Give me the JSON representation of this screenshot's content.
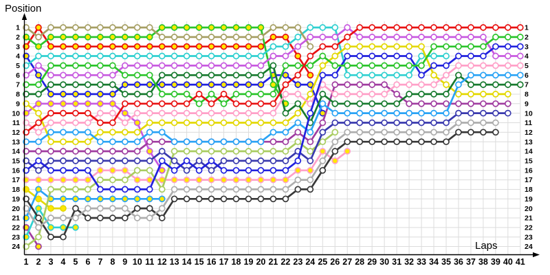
{
  "page": {
    "background": "#FFFFFF"
  },
  "chart_data": {
    "type": "line",
    "title": "",
    "ylabel": "Position",
    "xlabel": "Laps",
    "x_ticks": [
      1,
      2,
      3,
      4,
      5,
      6,
      7,
      8,
      9,
      10,
      11,
      12,
      13,
      14,
      15,
      16,
      17,
      18,
      19,
      20,
      21,
      22,
      23,
      24,
      25,
      26,
      27,
      28,
      29,
      30,
      31,
      32,
      33,
      34,
      35,
      36,
      37,
      38,
      39,
      40,
      41
    ],
    "y_ticks": [
      1,
      2,
      3,
      4,
      5,
      6,
      7,
      8,
      9,
      10,
      11,
      12,
      13,
      14,
      15,
      16,
      17,
      18,
      19,
      20,
      21,
      22,
      23,
      24
    ],
    "x_range": [
      1,
      41
    ],
    "y_range": [
      1,
      24
    ],
    "grid": true,
    "grid_color": "#DCDCDC",
    "axis_color": "#000000",
    "tick_label_color": "#000000",
    "marker_fill_white": "#FFFFFF",
    "marker_fill_yellow": "#FFE800",
    "legend": "none",
    "series": [
      {
        "name": "red-1",
        "color": "#E81212",
        "marker": "white",
        "positions": [
          12,
          11,
          10,
          10,
          10,
          10,
          11,
          11,
          9,
          9,
          9,
          9,
          9,
          9,
          8,
          9,
          8,
          9,
          9,
          9,
          9,
          7,
          6,
          4,
          3,
          3,
          2,
          1,
          1,
          1,
          1,
          1,
          1,
          1,
          1,
          1,
          1,
          1,
          1,
          1,
          1
        ]
      },
      {
        "name": "green-1",
        "color": "#2BC42B",
        "marker": "white",
        "positions": [
          7,
          7,
          5,
          5,
          5,
          5,
          5,
          5,
          6,
          6,
          6,
          8,
          8,
          8,
          9,
          8,
          9,
          8,
          8,
          8,
          8,
          5,
          5,
          5,
          4,
          5,
          5,
          5,
          5,
          5,
          5,
          5,
          5,
          3,
          3,
          3,
          3,
          3,
          2,
          2,
          2
        ]
      },
      {
        "name": "blue-1",
        "color": "#2121DE",
        "marker": "white",
        "positions": [
          16,
          15,
          16,
          16,
          16,
          16,
          18,
          18,
          18,
          18,
          18,
          15,
          16,
          15,
          16,
          15,
          16,
          16,
          16,
          16,
          16,
          16,
          15,
          10,
          6,
          6,
          4,
          4,
          4,
          4,
          4,
          4,
          6,
          5,
          5,
          4,
          4,
          4,
          3,
          3,
          3
        ]
      },
      {
        "name": "violet-1",
        "color": "#C85AE0",
        "marker": "white",
        "positions": [
          6,
          5,
          6,
          6,
          6,
          6,
          6,
          6,
          5,
          5,
          5,
          5,
          5,
          5,
          5,
          5,
          5,
          5,
          5,
          5,
          4,
          4,
          3,
          2,
          2,
          2,
          1,
          2,
          2,
          2,
          2,
          2,
          2,
          2,
          2,
          2,
          2,
          2,
          4,
          4,
          4
        ]
      },
      {
        "name": "pink-1",
        "color": "#FFA0C8",
        "marker": "white",
        "positions": [
          11,
          12,
          11,
          11,
          11,
          11,
          10,
          10,
          11,
          10,
          10,
          10,
          10,
          10,
          10,
          10,
          10,
          10,
          10,
          10,
          10,
          8,
          8,
          9,
          7,
          8,
          8,
          8,
          8,
          8,
          7,
          7,
          7,
          7,
          6,
          5,
          5,
          5,
          5,
          5,
          5
        ]
      },
      {
        "name": "skyblue-1",
        "color": "#29A3F5",
        "marker": "white",
        "positions": [
          13,
          13,
          12,
          12,
          12,
          12,
          13,
          13,
          13,
          13,
          12,
          12,
          13,
          13,
          13,
          13,
          13,
          13,
          13,
          13,
          12,
          12,
          11,
          12,
          9,
          10,
          10,
          10,
          10,
          10,
          10,
          10,
          10,
          10,
          10,
          7,
          6,
          6,
          6,
          6,
          6
        ]
      },
      {
        "name": "darkgreen-1",
        "color": "#177A2E",
        "marker": "white",
        "positions": [
          8,
          8,
          7,
          7,
          7,
          7,
          7,
          7,
          8,
          8,
          8,
          6,
          6,
          6,
          6,
          6,
          6,
          6,
          6,
          6,
          5,
          10,
          9,
          11,
          8,
          9,
          9,
          9,
          9,
          9,
          9,
          8,
          8,
          8,
          8,
          6,
          7,
          7,
          7,
          7,
          7
        ]
      },
      {
        "name": "yellow-1",
        "color": "#E3D800",
        "marker": "white",
        "positions": [
          9,
          10,
          13,
          13,
          13,
          13,
          12,
          12,
          12,
          12,
          11,
          11,
          11,
          11,
          11,
          11,
          11,
          11,
          11,
          11,
          11,
          11,
          10,
          8,
          5,
          4,
          3,
          3,
          3,
          3,
          3,
          3,
          3,
          6,
          7,
          8,
          8,
          8,
          8,
          8,
          null
        ]
      },
      {
        "name": "purple-1",
        "color": "#A03CA0",
        "marker": "white",
        "positions": [
          14,
          14,
          14,
          14,
          14,
          14,
          14,
          14,
          14,
          14,
          13,
          13,
          13,
          13,
          13,
          13,
          13,
          13,
          13,
          13,
          13,
          13,
          12,
          13,
          11,
          7,
          7,
          7,
          7,
          7,
          8,
          9,
          9,
          9,
          9,
          9,
          9,
          9,
          9,
          9,
          null
        ]
      },
      {
        "name": "navy-1",
        "color": "#3A3AAE",
        "marker": "white",
        "positions": [
          15,
          16,
          15,
          15,
          15,
          15,
          15,
          15,
          15,
          15,
          15,
          14,
          15,
          16,
          15,
          16,
          15,
          15,
          15,
          15,
          15,
          15,
          14,
          15,
          12,
          11,
          11,
          11,
          11,
          11,
          11,
          11,
          11,
          11,
          11,
          10,
          10,
          10,
          10,
          10,
          null
        ]
      },
      {
        "name": "gray-1",
        "color": "#ADADAD",
        "marker": "white",
        "positions": [
          20,
          22,
          21,
          21,
          21,
          20,
          20,
          20,
          20,
          21,
          21,
          20,
          18,
          18,
          18,
          18,
          18,
          18,
          18,
          18,
          18,
          18,
          17,
          17,
          15,
          13,
          12,
          12,
          12,
          12,
          12,
          12,
          12,
          12,
          12,
          11,
          11,
          11,
          11,
          null,
          null
        ]
      },
      {
        "name": "black-1",
        "color": "#383838",
        "marker": "white",
        "positions": [
          19,
          21,
          23,
          23,
          20,
          21,
          21,
          21,
          21,
          20,
          20,
          21,
          19,
          19,
          19,
          19,
          19,
          19,
          19,
          19,
          19,
          19,
          18,
          18,
          16,
          14,
          13,
          13,
          13,
          13,
          13,
          13,
          13,
          13,
          13,
          12,
          12,
          12,
          12,
          null,
          null
        ]
      },
      {
        "name": "olive-1",
        "color": "#A69F63",
        "marker": "white",
        "positions": [
          1,
          2,
          1,
          1,
          1,
          1,
          1,
          1,
          1,
          1,
          1,
          2,
          2,
          2,
          2,
          2,
          2,
          2,
          2,
          2,
          1,
          1,
          1,
          3,
          null,
          null,
          null,
          null,
          null,
          null,
          null,
          null,
          null,
          null,
          null,
          null,
          null,
          null,
          null,
          null,
          null
        ]
      },
      {
        "name": "cyan-1",
        "color": "#2FD0D0",
        "marker": "white",
        "positions": [
          5,
          4,
          4,
          4,
          4,
          4,
          4,
          4,
          4,
          4,
          4,
          4,
          4,
          4,
          4,
          4,
          4,
          4,
          4,
          4,
          3,
          3,
          2,
          1,
          1,
          1,
          6,
          6,
          6,
          6,
          6,
          6,
          4,
          4,
          4,
          null,
          null,
          null,
          null,
          null,
          null
        ]
      },
      {
        "name": "yellowgreen-1",
        "color": "#A9CC60",
        "marker": "white",
        "positions": [
          24,
          23,
          18,
          18,
          18,
          18,
          17,
          17,
          17,
          16,
          16,
          18,
          14,
          14,
          14,
          14,
          14,
          14,
          14,
          14,
          14,
          14,
          13,
          14,
          13,
          12,
          null,
          null,
          null,
          null,
          null,
          null,
          null,
          null,
          null,
          null,
          null,
          null,
          null,
          null,
          null
        ]
      },
      {
        "name": "green-2",
        "color": "#2BC42B",
        "marker": "yellow",
        "positions": [
          2,
          3,
          2,
          2,
          2,
          2,
          2,
          2,
          2,
          2,
          2,
          1,
          1,
          1,
          1,
          1,
          1,
          1,
          1,
          1,
          7,
          9,
          null,
          null,
          null,
          null,
          null,
          null,
          null,
          null,
          null,
          null,
          null,
          null,
          null,
          null,
          null,
          null,
          null,
          null,
          null
        ]
      },
      {
        "name": "red-2",
        "color": "#E81212",
        "marker": "yellow",
        "positions": [
          3,
          1,
          3,
          3,
          3,
          3,
          3,
          3,
          3,
          3,
          3,
          3,
          3,
          3,
          3,
          3,
          3,
          3,
          3,
          3,
          2,
          2,
          4,
          6,
          null,
          null,
          null,
          null,
          null,
          null,
          null,
          null,
          null,
          null,
          null,
          null,
          null,
          null,
          null,
          null,
          null
        ]
      },
      {
        "name": "blue-2",
        "color": "#2121DE",
        "marker": "yellow",
        "positions": [
          4,
          6,
          8,
          8,
          8,
          8,
          8,
          8,
          7,
          7,
          7,
          7,
          7,
          7,
          7,
          7,
          7,
          7,
          7,
          7,
          6,
          6,
          7,
          7,
          10,
          null,
          null,
          null,
          null,
          null,
          null,
          null,
          null,
          null,
          null,
          null,
          null,
          null,
          null,
          null,
          null
        ]
      },
      {
        "name": "violet-2",
        "color": "#C85AE0",
        "marker": "yellow",
        "positions": [
          10,
          9,
          9,
          9,
          9,
          9,
          9,
          9,
          10,
          11,
          14,
          16,
          null,
          null,
          null,
          null,
          null,
          null,
          null,
          null,
          null,
          null,
          null,
          null,
          null,
          null,
          null,
          null,
          null,
          null,
          null,
          null,
          null,
          null,
          null,
          null,
          null,
          null,
          null,
          null,
          null
        ]
      },
      {
        "name": "pink-2",
        "color": "#FFA0C8",
        "marker": "yellow",
        "positions": [
          17,
          17,
          17,
          17,
          17,
          17,
          16,
          16,
          16,
          17,
          17,
          17,
          17,
          17,
          17,
          17,
          17,
          17,
          17,
          17,
          17,
          17,
          16,
          16,
          14,
          15,
          14,
          null,
          null,
          null,
          null,
          null,
          null,
          null,
          null,
          null,
          null,
          null,
          null,
          null,
          null
        ]
      },
      {
        "name": "skyblue-2",
        "color": "#29A3F5",
        "marker": "yellow",
        "positions": [
          21,
          18,
          19,
          19,
          19,
          19,
          19,
          19,
          19,
          19,
          19,
          19,
          null,
          null,
          null,
          null,
          null,
          null,
          null,
          null,
          null,
          null,
          null,
          null,
          null,
          null,
          null,
          null,
          null,
          null,
          null,
          null,
          null,
          null,
          null,
          null,
          null,
          null,
          null,
          null,
          null
        ]
      },
      {
        "name": "cyan-2",
        "color": "#2FD0D0",
        "marker": "yellow",
        "positions": [
          23,
          20,
          22,
          22,
          22,
          null,
          null,
          null,
          null,
          null,
          null,
          null,
          null,
          null,
          null,
          null,
          null,
          null,
          null,
          null,
          null,
          null,
          null,
          null,
          null,
          null,
          null,
          null,
          null,
          null,
          null,
          null,
          null,
          null,
          null,
          null,
          null,
          null,
          null,
          null,
          null
        ]
      },
      {
        "name": "yellow-2",
        "color": "#E3D800",
        "marker": "yellow",
        "positions": [
          18,
          19,
          20,
          20,
          null,
          null,
          null,
          null,
          null,
          null,
          null,
          null,
          null,
          null,
          null,
          null,
          null,
          null,
          null,
          null,
          null,
          null,
          null,
          null,
          null,
          null,
          null,
          null,
          null,
          null,
          null,
          null,
          null,
          null,
          null,
          null,
          null,
          null,
          null,
          null,
          null
        ]
      },
      {
        "name": "purple-2",
        "color": "#A03CA0",
        "marker": "yellow",
        "positions": [
          22,
          24,
          null,
          null,
          null,
          null,
          null,
          null,
          null,
          null,
          null,
          null,
          null,
          null,
          null,
          null,
          null,
          null,
          null,
          null,
          null,
          null,
          null,
          null,
          null,
          null,
          null,
          null,
          null,
          null,
          null,
          null,
          null,
          null,
          null,
          null,
          null,
          null,
          null,
          null,
          null
        ]
      }
    ]
  }
}
